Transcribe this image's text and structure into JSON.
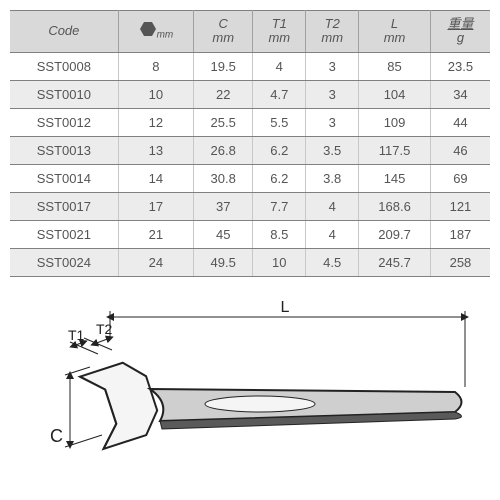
{
  "table": {
    "columns": [
      {
        "label": "Code",
        "sub": ""
      },
      {
        "label": "",
        "sub": "mm",
        "icon": "hex"
      },
      {
        "label": "C",
        "sub": "mm"
      },
      {
        "label": "T1",
        "sub": "mm"
      },
      {
        "label": "T2",
        "sub": "mm"
      },
      {
        "label": "L",
        "sub": "mm"
      },
      {
        "label": "重量",
        "sub": "g"
      }
    ],
    "rows": [
      [
        "SST0008",
        "8",
        "19.5",
        "4",
        "3",
        "85",
        "23.5"
      ],
      [
        "SST0010",
        "10",
        "22",
        "4.7",
        "3",
        "104",
        "34"
      ],
      [
        "SST0012",
        "12",
        "25.5",
        "5.5",
        "3",
        "109",
        "44"
      ],
      [
        "SST0013",
        "13",
        "26.8",
        "6.2",
        "3.5",
        "117.5",
        "46"
      ],
      [
        "SST0014",
        "14",
        "30.8",
        "6.2",
        "3.8",
        "145",
        "69"
      ],
      [
        "SST0017",
        "17",
        "37",
        "7.7",
        "4",
        "168.6",
        "121"
      ],
      [
        "SST0021",
        "21",
        "45",
        "8.5",
        "4",
        "209.7",
        "187"
      ],
      [
        "SST0024",
        "24",
        "49.5",
        "10",
        "4.5",
        "245.7",
        "258"
      ]
    ],
    "header_bg": "#d9d9d9",
    "row_alt_bg": "#ececec",
    "border_color": "#808080",
    "text_color": "#555555"
  },
  "diagram": {
    "labels": {
      "T1": "T1",
      "T2": "T2",
      "C": "C",
      "L": "L"
    },
    "stroke": "#222222",
    "fill_light": "#f5f5f5",
    "fill_dark": "#cfcfcf",
    "handle_dark": "#5a5a5a"
  }
}
